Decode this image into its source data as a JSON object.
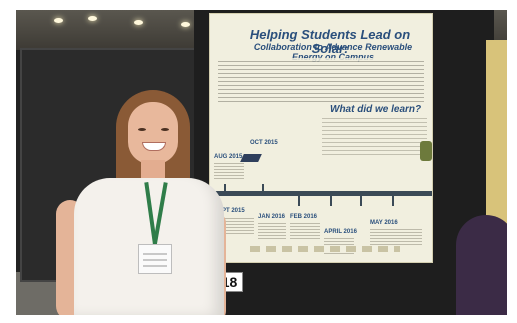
{
  "poster": {
    "title": "Helping Students Lead on Solar:",
    "subtitle": "Collaboration to Advance Renewable Energy on Campus",
    "question": "What did we learn?",
    "months": [
      "OCT 2015",
      "AUG 2015",
      "SEPT 2015",
      "JAN 2016",
      "FEB 2016",
      "APRIL 2016",
      "MAY 2016"
    ]
  },
  "booth": {
    "number": "118"
  }
}
